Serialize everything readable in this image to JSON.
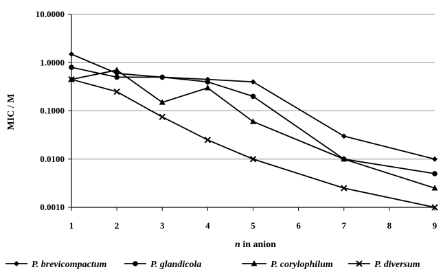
{
  "chart_data": {
    "type": "line",
    "title": "",
    "xlabel_italic": "n",
    "xlabel_rest": " in anion",
    "ylabel": "MIC / M",
    "yscale": "log",
    "ylim": [
      0.001,
      10
    ],
    "yticks": [
      {
        "value": 0.001,
        "label": "0.0010"
      },
      {
        "value": 0.01,
        "label": "0.0100"
      },
      {
        "value": 0.1,
        "label": "0.1000"
      },
      {
        "value": 1,
        "label": "1.0000"
      },
      {
        "value": 10,
        "label": "10.0000"
      }
    ],
    "categories": [
      "1",
      "2",
      "3",
      "4",
      "5",
      "6",
      "7",
      "8",
      "9"
    ],
    "grid": "horizontal",
    "legend_position": "bottom",
    "series": [
      {
        "name": "P. brevicompactum",
        "marker": "diamond",
        "x": [
          1,
          2,
          3,
          4,
          5,
          7,
          9
        ],
        "y": [
          1.5,
          0.6,
          0.5,
          0.45,
          0.4,
          0.03,
          0.01
        ]
      },
      {
        "name": "P. glandicola",
        "marker": "circle",
        "x": [
          1,
          2,
          3,
          4,
          5,
          7,
          9
        ],
        "y": [
          0.8,
          0.5,
          0.5,
          0.4,
          0.2,
          0.01,
          0.005
        ]
      },
      {
        "name": "P. corylophilum",
        "marker": "triangle",
        "x": [
          1,
          2,
          3,
          4,
          5,
          7,
          9
        ],
        "y": [
          0.45,
          0.7,
          0.15,
          0.3,
          0.06,
          0.01,
          0.0025
        ]
      },
      {
        "name": "P. diversum",
        "marker": "x",
        "x": [
          1,
          2,
          3,
          4,
          5,
          7,
          9
        ],
        "y": [
          0.45,
          0.25,
          0.075,
          0.025,
          0.01,
          0.0025,
          0.001
        ]
      }
    ]
  }
}
